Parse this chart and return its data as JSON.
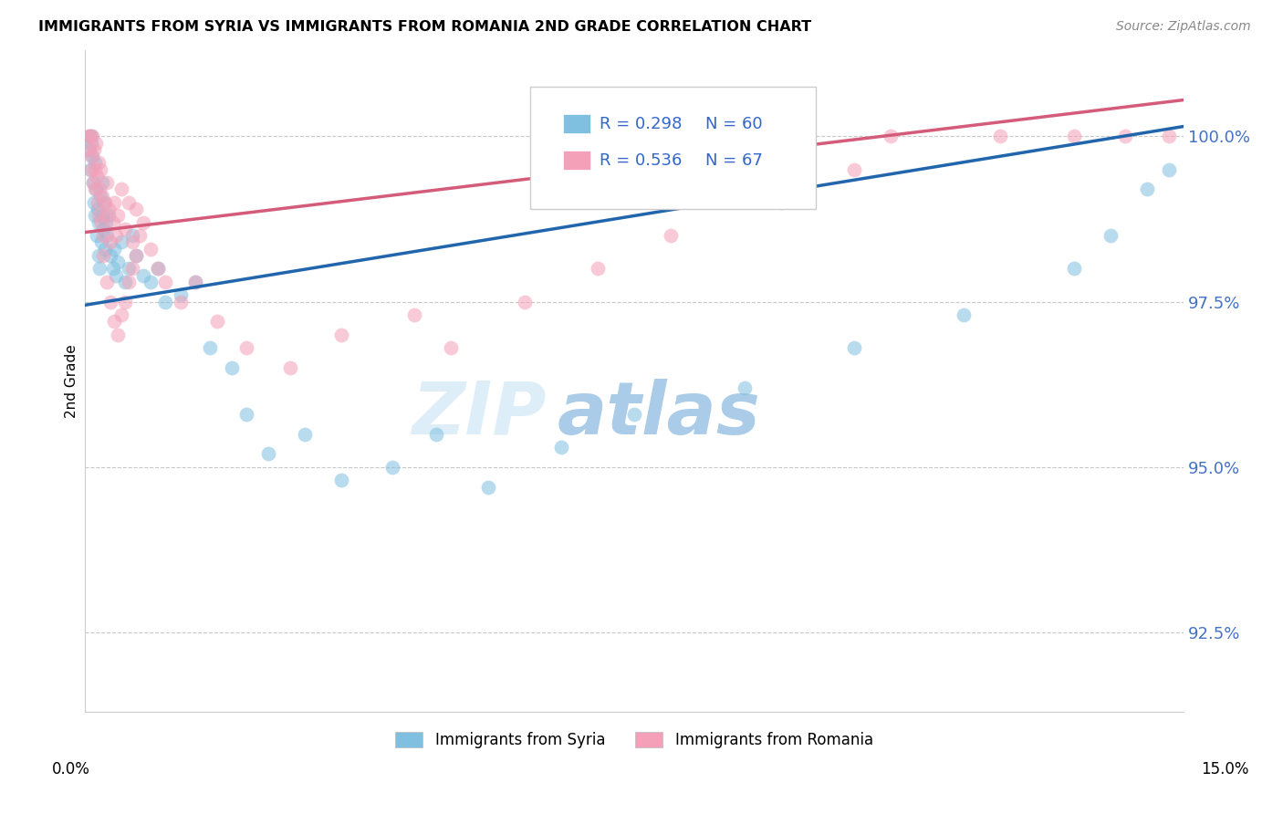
{
  "title": "IMMIGRANTS FROM SYRIA VS IMMIGRANTS FROM ROMANIA 2ND GRADE CORRELATION CHART",
  "source": "Source: ZipAtlas.com",
  "ylabel": "2nd Grade",
  "yticks": [
    92.5,
    95.0,
    97.5,
    100.0
  ],
  "ytick_labels": [
    "92.5%",
    "95.0%",
    "97.5%",
    "100.0%"
  ],
  "xlim": [
    0.0,
    15.0
  ],
  "ylim": [
    91.3,
    101.3
  ],
  "legend_syria": "Immigrants from Syria",
  "legend_romania": "Immigrants from Romania",
  "R_syria": 0.298,
  "N_syria": 60,
  "R_romania": 0.536,
  "N_romania": 67,
  "color_syria": "#7fbfdf",
  "color_romania": "#f4a0b8",
  "color_syria_line": "#2166ac",
  "color_romania_line": "#d45c7a",
  "syria_trend_x0": 0.0,
  "syria_trend_y0": 97.45,
  "syria_trend_x1": 15.0,
  "syria_trend_y1": 100.15,
  "romania_trend_x0": 0.0,
  "romania_trend_y0": 98.55,
  "romania_trend_x1": 15.0,
  "romania_trend_y1": 100.55,
  "syria_x": [
    0.05,
    0.06,
    0.07,
    0.08,
    0.09,
    0.1,
    0.11,
    0.12,
    0.13,
    0.14,
    0.15,
    0.16,
    0.17,
    0.18,
    0.19,
    0.2,
    0.21,
    0.22,
    0.23,
    0.24,
    0.25,
    0.26,
    0.27,
    0.28,
    0.3,
    0.32,
    0.35,
    0.38,
    0.4,
    0.42,
    0.45,
    0.5,
    0.55,
    0.6,
    0.65,
    0.7,
    0.8,
    0.9,
    1.0,
    1.1,
    1.3,
    1.5,
    1.7,
    2.0,
    2.2,
    2.5,
    3.0,
    3.5,
    4.2,
    4.8,
    5.5,
    6.5,
    7.5,
    9.0,
    10.5,
    12.0,
    13.5,
    14.0,
    14.5,
    14.8
  ],
  "syria_y": [
    99.8,
    100.0,
    99.5,
    99.9,
    100.0,
    99.7,
    99.3,
    99.0,
    99.6,
    98.8,
    99.2,
    98.5,
    98.9,
    98.2,
    98.7,
    98.0,
    99.1,
    98.4,
    98.8,
    99.3,
    98.6,
    99.0,
    98.3,
    98.7,
    98.5,
    98.8,
    98.2,
    98.0,
    98.3,
    97.9,
    98.1,
    98.4,
    97.8,
    98.0,
    98.5,
    98.2,
    97.9,
    97.8,
    98.0,
    97.5,
    97.6,
    97.8,
    96.8,
    96.5,
    95.8,
    95.2,
    95.5,
    94.8,
    95.0,
    95.5,
    94.7,
    95.3,
    95.8,
    96.2,
    96.8,
    97.3,
    98.0,
    98.5,
    99.2,
    99.5
  ],
  "romania_x": [
    0.05,
    0.06,
    0.07,
    0.08,
    0.09,
    0.1,
    0.11,
    0.12,
    0.13,
    0.14,
    0.15,
    0.16,
    0.17,
    0.18,
    0.19,
    0.2,
    0.21,
    0.22,
    0.23,
    0.25,
    0.27,
    0.28,
    0.3,
    0.32,
    0.35,
    0.38,
    0.4,
    0.42,
    0.45,
    0.5,
    0.55,
    0.6,
    0.65,
    0.7,
    0.8,
    0.9,
    1.0,
    1.1,
    1.3,
    1.5,
    1.8,
    2.2,
    2.8,
    3.5,
    4.5,
    5.0,
    6.0,
    7.0,
    8.0,
    9.5,
    10.5,
    11.0,
    12.5,
    13.5,
    14.2,
    14.8,
    0.25,
    0.3,
    0.35,
    0.4,
    0.45,
    0.5,
    0.55,
    0.6,
    0.65,
    0.7,
    0.75
  ],
  "romania_y": [
    100.0,
    99.8,
    100.0,
    99.5,
    99.7,
    100.0,
    99.3,
    99.8,
    99.5,
    99.2,
    99.9,
    99.4,
    99.0,
    99.6,
    98.8,
    99.2,
    99.5,
    98.7,
    99.1,
    98.5,
    99.0,
    98.8,
    99.3,
    98.9,
    98.4,
    98.7,
    99.0,
    98.5,
    98.8,
    99.2,
    98.6,
    99.0,
    98.4,
    98.9,
    98.7,
    98.3,
    98.0,
    97.8,
    97.5,
    97.8,
    97.2,
    96.8,
    96.5,
    97.0,
    97.3,
    96.8,
    97.5,
    98.0,
    98.5,
    99.0,
    99.5,
    100.0,
    100.0,
    100.0,
    100.0,
    100.0,
    98.2,
    97.8,
    97.5,
    97.2,
    97.0,
    97.3,
    97.5,
    97.8,
    98.0,
    98.2,
    98.5
  ]
}
